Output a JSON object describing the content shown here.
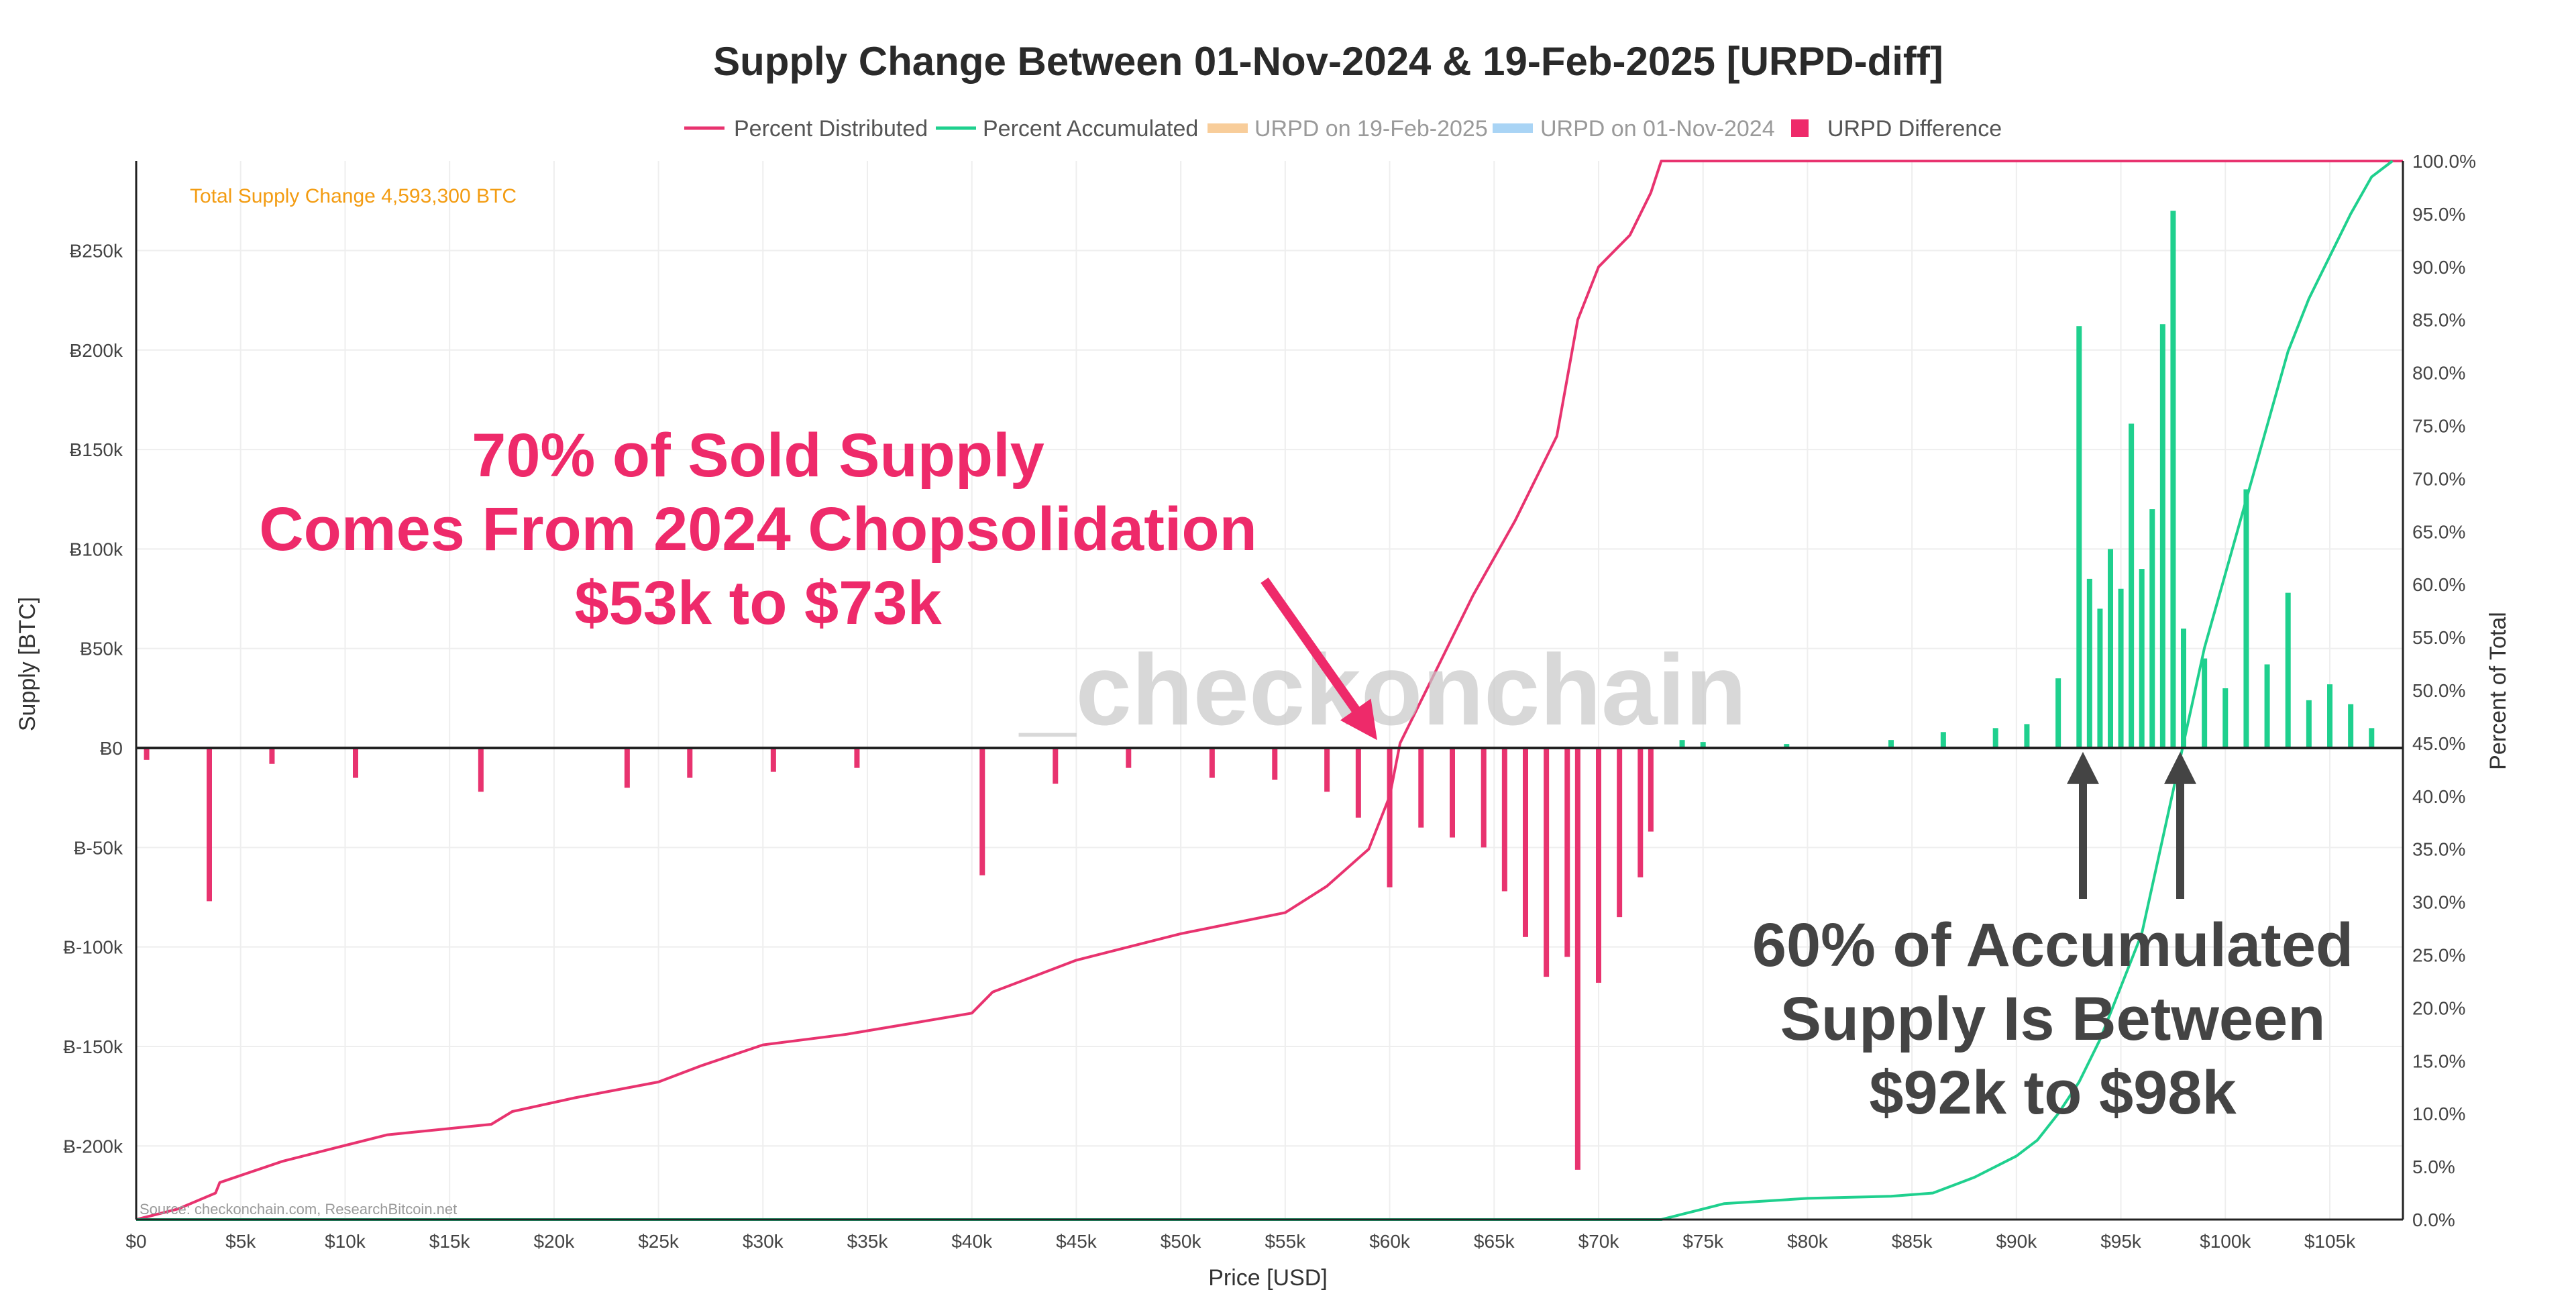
{
  "colors": {
    "distributed": "#e8336f",
    "accumulated": "#1fd08e",
    "urpd_new": "#f8cd9a",
    "urpd_old": "#a9d4f5",
    "difference": "#ee2a6a",
    "annotation_red": "#ee2a6a",
    "annotation_gray": "#444444",
    "total_change": "#f39c12"
  },
  "chart_data": {
    "type": "bar",
    "title": "Supply Change Between 01-Nov-2024 & 19-Feb-2025 [URPD-diff]",
    "xlabel": "Price [USD]",
    "ylabel": "Supply [BTC]",
    "y2label": "Percent of Total",
    "xlim": [
      0,
      108500
    ],
    "ylim": [
      -237000,
      295000
    ],
    "y2lim": [
      0,
      100
    ],
    "x_ticks": [
      "$0",
      "$5k",
      "$10k",
      "$15k",
      "$20k",
      "$25k",
      "$30k",
      "$35k",
      "$40k",
      "$45k",
      "$50k",
      "$55k",
      "$60k",
      "$65k",
      "$70k",
      "$75k",
      "$80k",
      "$85k",
      "$90k",
      "$95k",
      "$100k",
      "$105k"
    ],
    "y_ticks": [
      "Ƀ250k",
      "Ƀ200k",
      "Ƀ150k",
      "Ƀ100k",
      "Ƀ50k",
      "Ƀ0",
      "Ƀ-50k",
      "Ƀ-100k",
      "Ƀ-150k",
      "Ƀ-200k"
    ],
    "y2_ticks": [
      "100.0%",
      "95.0%",
      "90.0%",
      "85.0%",
      "80.0%",
      "75.0%",
      "70.0%",
      "65.0%",
      "60.0%",
      "55.0%",
      "50.0%",
      "45.0%",
      "40.0%",
      "35.0%",
      "30.0%",
      "25.0%",
      "20.0%",
      "15.0%",
      "10.0%",
      "5.0%",
      "0.0%"
    ],
    "legend": [
      "Percent Distributed",
      "Percent Accumulated",
      "URPD on 19-Feb-2025",
      "URPD on 01-Nov-2024",
      "URPD Difference"
    ],
    "legend_position": "top-center",
    "grid": true,
    "series": [
      {
        "name": "URPD Difference",
        "type": "bar",
        "x": [
          500,
          3500,
          6500,
          10500,
          16500,
          23500,
          26500,
          30500,
          34500,
          40500,
          44000,
          47500,
          51500,
          54500,
          57000,
          58500,
          60000,
          61500,
          63000,
          64500,
          65500,
          66500,
          67500,
          68500,
          69000,
          70000,
          71000,
          72000,
          72500,
          74000,
          75000,
          79000,
          84000,
          86500,
          89000,
          90500,
          92000,
          93000,
          93500,
          94000,
          94500,
          95000,
          95500,
          96000,
          96500,
          97000,
          97500,
          98000,
          99000,
          100000,
          101000,
          102000,
          103000,
          104000,
          105000,
          106000,
          107000
        ],
        "values": [
          -6000,
          -77000,
          -8000,
          -15000,
          -22000,
          -20000,
          -15000,
          -12000,
          -10000,
          -64000,
          -18000,
          -10000,
          -15000,
          -16000,
          -22000,
          -35000,
          -70000,
          -40000,
          -45000,
          -50000,
          -72000,
          -95000,
          -115000,
          -105000,
          -212000,
          -118000,
          -85000,
          -65000,
          -42000,
          4000,
          3000,
          2000,
          4000,
          8000,
          10000,
          12000,
          35000,
          212000,
          85000,
          70000,
          100000,
          80000,
          163000,
          90000,
          120000,
          213000,
          270000,
          60000,
          45000,
          30000,
          130000,
          42000,
          78000,
          24000,
          32000,
          22000,
          10000
        ]
      },
      {
        "name": "Percent Distributed",
        "type": "line",
        "axis": "right",
        "x": [
          0,
          2000,
          3800,
          4000,
          7000,
          10000,
          12000,
          17000,
          18000,
          21000,
          25000,
          27000,
          30000,
          34000,
          37000,
          40000,
          41000,
          43000,
          45000,
          50000,
          55000,
          57000,
          59000,
          60000,
          60500,
          62000,
          64000,
          66000,
          68000,
          69000,
          70000,
          71500,
          72500,
          73000,
          80000,
          90000,
          100000,
          108500
        ],
        "values": [
          0,
          1,
          2.5,
          3.5,
          5.5,
          7,
          8,
          9,
          10.2,
          11.5,
          13,
          14.5,
          16.5,
          17.5,
          18.5,
          19.5,
          21.5,
          23,
          24.5,
          27,
          29,
          31.5,
          35,
          40,
          45,
          51,
          59,
          66,
          74,
          85,
          90,
          93,
          97,
          100,
          100,
          100,
          100,
          100
        ]
      },
      {
        "name": "Percent Accumulated",
        "type": "line",
        "axis": "right",
        "x": [
          0,
          60000,
          70000,
          73000,
          74000,
          76000,
          80000,
          84000,
          86000,
          88000,
          90000,
          91000,
          92000,
          93000,
          94000,
          95000,
          96000,
          97000,
          98000,
          99000,
          100000,
          101000,
          102000,
          103000,
          104000,
          105000,
          106000,
          107000,
          108000
        ],
        "values": [
          0,
          0,
          0,
          0,
          0.5,
          1.5,
          2,
          2.2,
          2.5,
          4,
          6,
          7.5,
          10,
          13,
          17,
          22,
          27,
          36,
          45,
          54,
          61,
          68,
          75,
          82,
          87,
          91,
          95,
          98.5,
          100
        ]
      }
    ],
    "annotations": {
      "total_change": "Total Supply Change 4,593,300 BTC",
      "sold_line1": "70% of Sold Supply",
      "sold_line2": "Comes From 2024 Chopsolidation",
      "sold_line3": "$53k to $73k",
      "acc_line1": "60% of Accumulated",
      "acc_line2": "Supply Is Between",
      "acc_line3": "$92k to $98k",
      "watermark": "_checkonchain",
      "source": "Source: checkonchain.com, ResearchBitcoin.net"
    }
  }
}
